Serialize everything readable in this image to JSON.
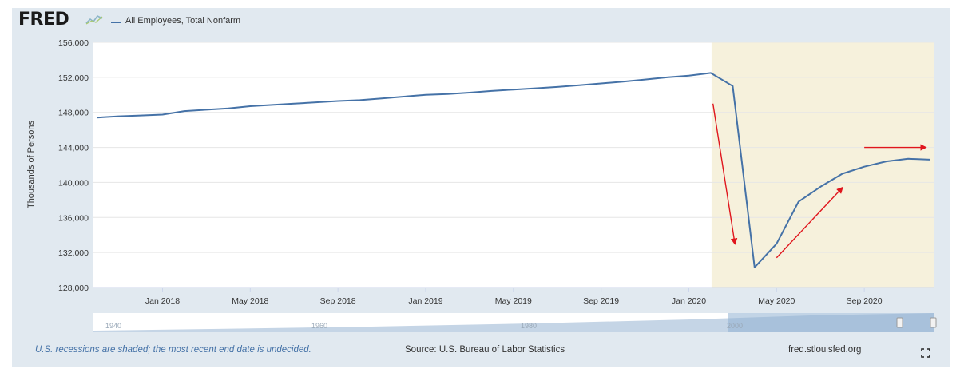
{
  "branding": {
    "logo": "FRED",
    "site": "fred.stlouisfed.org"
  },
  "chart_data": {
    "type": "line",
    "title": "All Employees, Total Nonfarm",
    "ylabel": "Thousands of Persons",
    "ylim": [
      128000,
      156000
    ],
    "yticks": [
      "128,000",
      "132,000",
      "136,000",
      "140,000",
      "144,000",
      "148,000",
      "152,000",
      "156,000"
    ],
    "xticks": [
      "Jan 2018",
      "May 2018",
      "Sep 2018",
      "Jan 2019",
      "May 2019",
      "Sep 2019",
      "Jan 2020",
      "May 2020",
      "Sep 2020"
    ],
    "series": [
      {
        "name": "All Employees, Total Nonfarm",
        "color": "#4572a7",
        "x": [
          "2017-10",
          "2017-11",
          "2017-12",
          "2018-01",
          "2018-02",
          "2018-03",
          "2018-04",
          "2018-05",
          "2018-06",
          "2018-07",
          "2018-08",
          "2018-09",
          "2018-10",
          "2018-11",
          "2018-12",
          "2019-01",
          "2019-02",
          "2019-03",
          "2019-04",
          "2019-05",
          "2019-06",
          "2019-07",
          "2019-08",
          "2019-09",
          "2019-10",
          "2019-11",
          "2019-12",
          "2020-01",
          "2020-02",
          "2020-03",
          "2020-04",
          "2020-05",
          "2020-06",
          "2020-07",
          "2020-08",
          "2020-09",
          "2020-10",
          "2020-11",
          "2020-12"
        ],
        "values": [
          147400,
          147550,
          147650,
          147750,
          148150,
          148300,
          148450,
          148700,
          148850,
          149000,
          149150,
          149300,
          149400,
          149600,
          149800,
          150000,
          150100,
          150250,
          150450,
          150600,
          150750,
          150900,
          151100,
          151300,
          151500,
          151750,
          152000,
          152200,
          152500,
          151000,
          130300,
          133000,
          137800,
          139500,
          141000,
          141800,
          142400,
          142700,
          142600
        ]
      }
    ],
    "recession": {
      "start": "2020-02",
      "end": "2020-12",
      "color": "#f6f1dc"
    },
    "annotations": [
      {
        "type": "arrow",
        "color": "#e0161d",
        "from": [
          "2020-02",
          149000
        ],
        "to": [
          "2020-03",
          133000
        ]
      },
      {
        "type": "arrow",
        "color": "#e0161d",
        "from": [
          "2020-05",
          131400
        ],
        "to": [
          "2020-08",
          139400
        ]
      },
      {
        "type": "arrow",
        "color": "#e0161d",
        "from": [
          "2020-09",
          144000
        ],
        "to": [
          "2020-12",
          144000
        ]
      }
    ],
    "navigator": {
      "labels": [
        "1940",
        "1960",
        "1980",
        "2000"
      ]
    },
    "grid": true
  },
  "footer": {
    "note": "U.S. recessions are shaded; the most recent end date is undecided.",
    "source": "Source: U.S. Bureau of Labor Statistics"
  },
  "icons": {
    "fullscreen": "fullscreen-icon",
    "logo_mark": "chart-logo-icon"
  }
}
